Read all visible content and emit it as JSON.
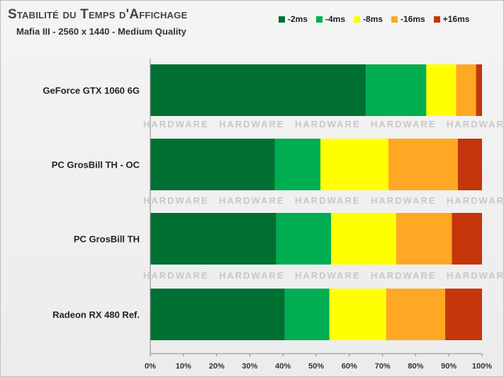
{
  "chart_data": {
    "type": "bar",
    "orientation": "horizontal",
    "stacked": true,
    "title": "Stabilité du Temps d'Affichage",
    "subtitle": "Mafia III - 2560 x 1440 - Medium Quality",
    "categories": [
      "GeForce GTX 1060 6G",
      "PC GrosBill TH - OC",
      "PC GrosBill TH",
      "Radeon RX 480 Ref."
    ],
    "series": [
      {
        "name": "-2ms",
        "color": "#007033",
        "values": [
          65,
          37.5,
          38,
          40.5
        ]
      },
      {
        "name": "-4ms",
        "color": "#00ad50",
        "values": [
          18.2,
          13.8,
          16.5,
          13.5
        ]
      },
      {
        "name": "-8ms",
        "color": "#ffff00",
        "values": [
          9,
          20.5,
          19.6,
          17.1
        ]
      },
      {
        "name": "-16ms",
        "color": "#ffa823",
        "values": [
          6,
          20.9,
          16.8,
          17.8
        ]
      },
      {
        "name": "+16ms",
        "color": "#c5360b",
        "values": [
          1.8,
          7.3,
          9.1,
          11.1
        ]
      }
    ],
    "xlim": [
      0,
      100
    ],
    "xticks": [
      "0%",
      "10%",
      "20%",
      "30%",
      "40%",
      "50%",
      "60%",
      "70%",
      "80%",
      "90%",
      "100%"
    ],
    "legend_position": "top-right",
    "watermark": "HARDWARE"
  }
}
